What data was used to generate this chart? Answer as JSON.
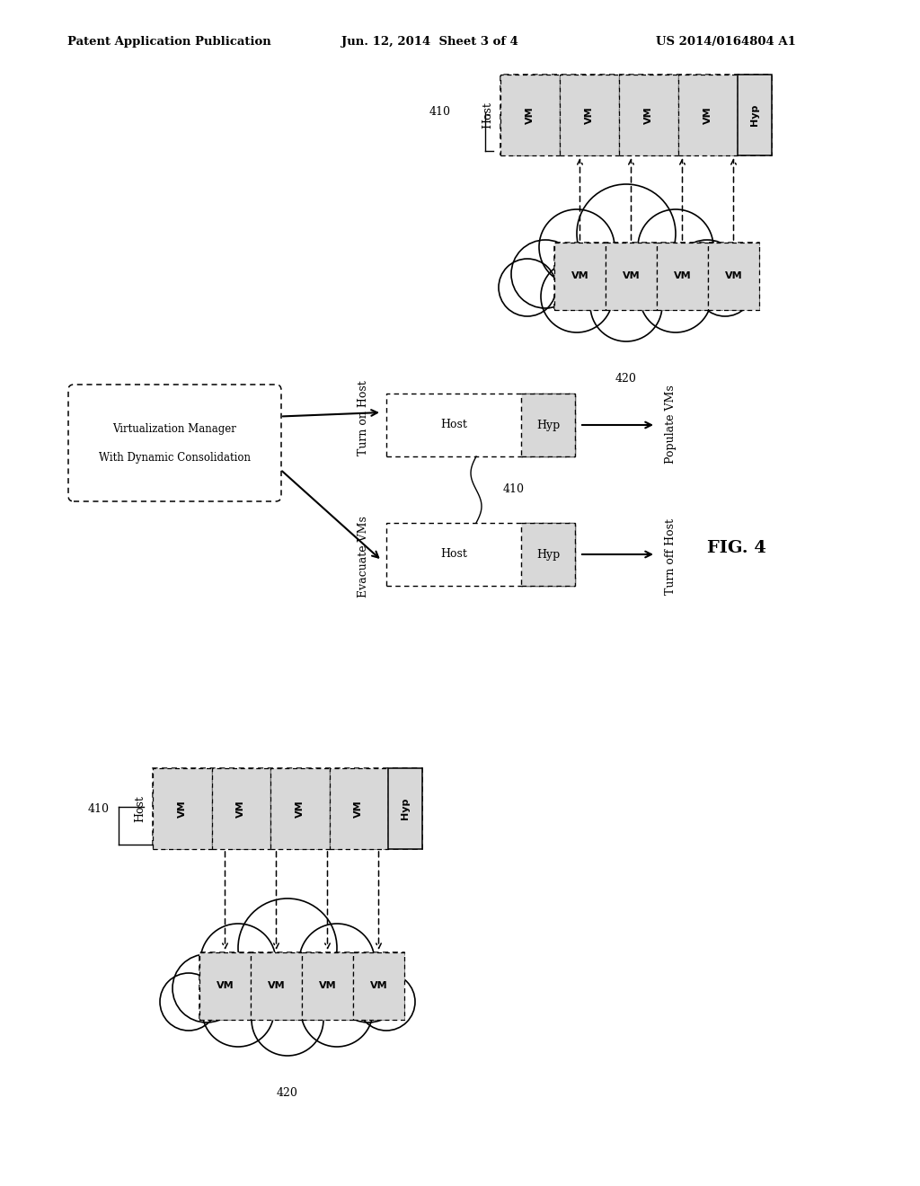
{
  "title_left": "Patent Application Publication",
  "title_center": "Jun. 12, 2014  Sheet 3 of 4",
  "title_right": "US 2014/0164804 A1",
  "fig_label": "FIG. 4",
  "background": "#ffffff",
  "gray": "#c8c8c8",
  "light_gray": "#d8d8d8"
}
